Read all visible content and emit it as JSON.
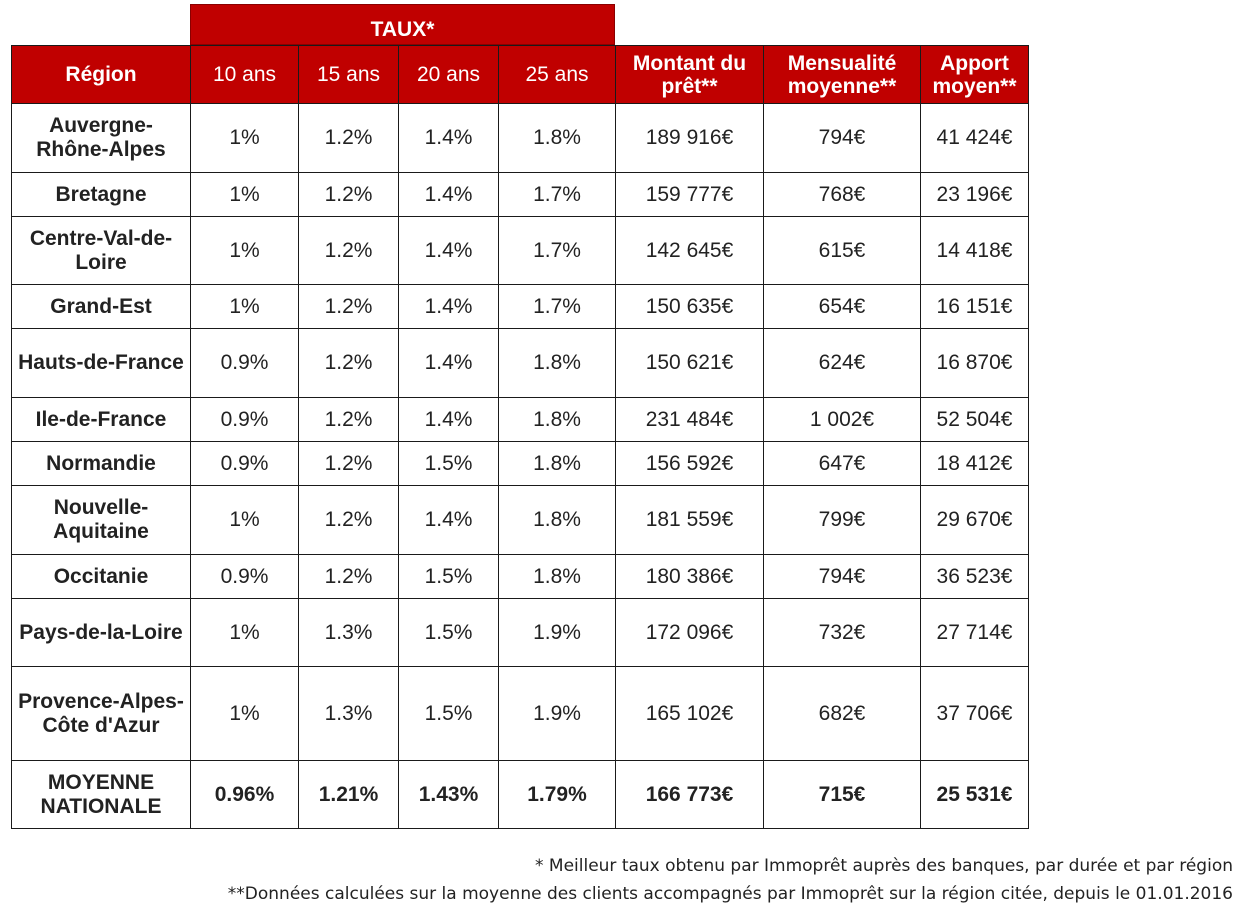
{
  "header": {
    "taux_group": "TAUX*",
    "region": "Région",
    "years": [
      "10 ans",
      "15 ans",
      "20 ans",
      "25 ans"
    ],
    "montant": "Montant du prêt**",
    "mensualite": "Mensualité moyenne**",
    "apport": "Apport moyen**"
  },
  "rows": [
    {
      "region": "Auvergne-Rhône-Alpes",
      "r10": "1%",
      "r15": "1.2%",
      "r20": "1.4%",
      "r25": "1.8%",
      "montant": "189 916€",
      "mensualite": "794€",
      "apport": "41 424€"
    },
    {
      "region": "Bretagne",
      "r10": "1%",
      "r15": "1.2%",
      "r20": "1.4%",
      "r25": "1.7%",
      "montant": "159 777€",
      "mensualite": "768€",
      "apport": "23 196€"
    },
    {
      "region": "Centre-Val-de-Loire",
      "r10": "1%",
      "r15": "1.2%",
      "r20": "1.4%",
      "r25": "1.7%",
      "montant": "142 645€",
      "mensualite": "615€",
      "apport": "14 418€"
    },
    {
      "region": "Grand-Est",
      "r10": "1%",
      "r15": "1.2%",
      "r20": "1.4%",
      "r25": "1.7%",
      "montant": "150 635€",
      "mensualite": "654€",
      "apport": "16 151€"
    },
    {
      "region": "Hauts-de-France",
      "r10": "0.9%",
      "r15": "1.2%",
      "r20": "1.4%",
      "r25": "1.8%",
      "montant": "150 621€",
      "mensualite": "624€",
      "apport": "16 870€"
    },
    {
      "region": "Ile-de-France",
      "r10": "0.9%",
      "r15": "1.2%",
      "r20": "1.4%",
      "r25": "1.8%",
      "montant": "231 484€",
      "mensualite": "1 002€",
      "apport": "52 504€"
    },
    {
      "region": "Normandie",
      "r10": "0.9%",
      "r15": "1.2%",
      "r20": "1.5%",
      "r25": "1.8%",
      "montant": "156 592€",
      "mensualite": "647€",
      "apport": "18 412€"
    },
    {
      "region": "Nouvelle-Aquitaine",
      "r10": "1%",
      "r15": "1.2%",
      "r20": "1.4%",
      "r25": "1.8%",
      "montant": "181 559€",
      "mensualite": "799€",
      "apport": "29 670€"
    },
    {
      "region": "Occitanie",
      "r10": "0.9%",
      "r15": "1.2%",
      "r20": "1.5%",
      "r25": "1.8%",
      "montant": "180 386€",
      "mensualite": "794€",
      "apport": "36 523€"
    },
    {
      "region": "Pays-de-la-Loire",
      "r10": "1%",
      "r15": "1.3%",
      "r20": "1.5%",
      "r25": "1.9%",
      "montant": "172 096€",
      "mensualite": "732€",
      "apport": "27 714€"
    },
    {
      "region": "Provence-Alpes-Côte d'Azur",
      "r10": "1%",
      "r15": "1.3%",
      "r20": "1.5%",
      "r25": "1.9%",
      "montant": "165 102€",
      "mensualite": "682€",
      "apport": "37 706€"
    }
  ],
  "average": {
    "region": "MOYENNE NATIONALE",
    "r10": "0.96%",
    "r15": "1.21%",
    "r20": "1.43%",
    "r25": "1.79%",
    "montant": "166 773€",
    "mensualite": "715€",
    "apport": "25 531€"
  },
  "footnotes": [
    "* Meilleur taux obtenu par Immoprêt auprès des banques, par durée et par région",
    "**Données calculées sur la moyenne des clients accompagnés par Immoprêt sur la région citée, depuis le 01.01.2016"
  ],
  "colors": {
    "header_bg": "#c00000",
    "header_text": "#ffffff",
    "border": "#1a1a1a"
  }
}
